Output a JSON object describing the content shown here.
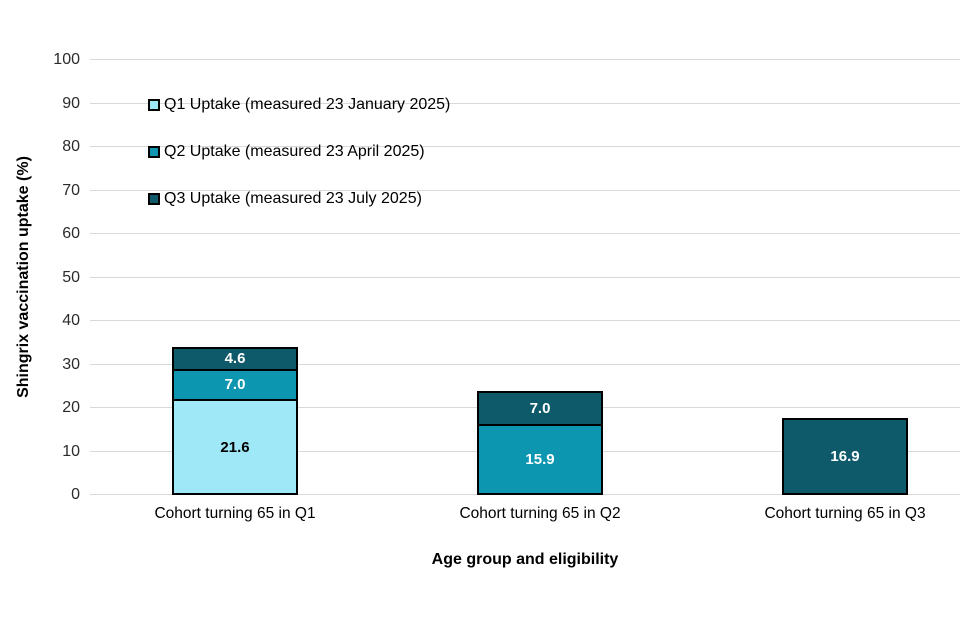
{
  "chart_data": {
    "type": "stacked-bar",
    "title": "",
    "xlabel": "Age group and eligibility",
    "ylabel": "Shingrix vaccination uptake (%)",
    "ylim": [
      0,
      100
    ],
    "ytick_step": 10,
    "grid": true,
    "gridline_color": "#d9d9d9",
    "legend_position": "top-left-inside",
    "bar_border_color": "#000000",
    "categories": [
      "Cohort turning 65 in Q1",
      "Cohort turning 65 in Q2",
      "Cohort turning 65 in Q3"
    ],
    "series": [
      {
        "name": "Q1 Uptake (measured 23 January 2025)",
        "color": "#9ee8f8",
        "label_color": "#000000",
        "values": [
          21.6,
          null,
          null
        ]
      },
      {
        "name": "Q2 Uptake (measured 23 April 2025)",
        "color": "#0d96b0",
        "label_color": "#ffffff",
        "values": [
          7.0,
          15.9,
          null
        ]
      },
      {
        "name": "Q3 Uptake (measured 23 July 2025)",
        "color": "#0f5a6a",
        "label_color": "#ffffff",
        "values": [
          4.6,
          7.0,
          16.9
        ]
      }
    ]
  }
}
